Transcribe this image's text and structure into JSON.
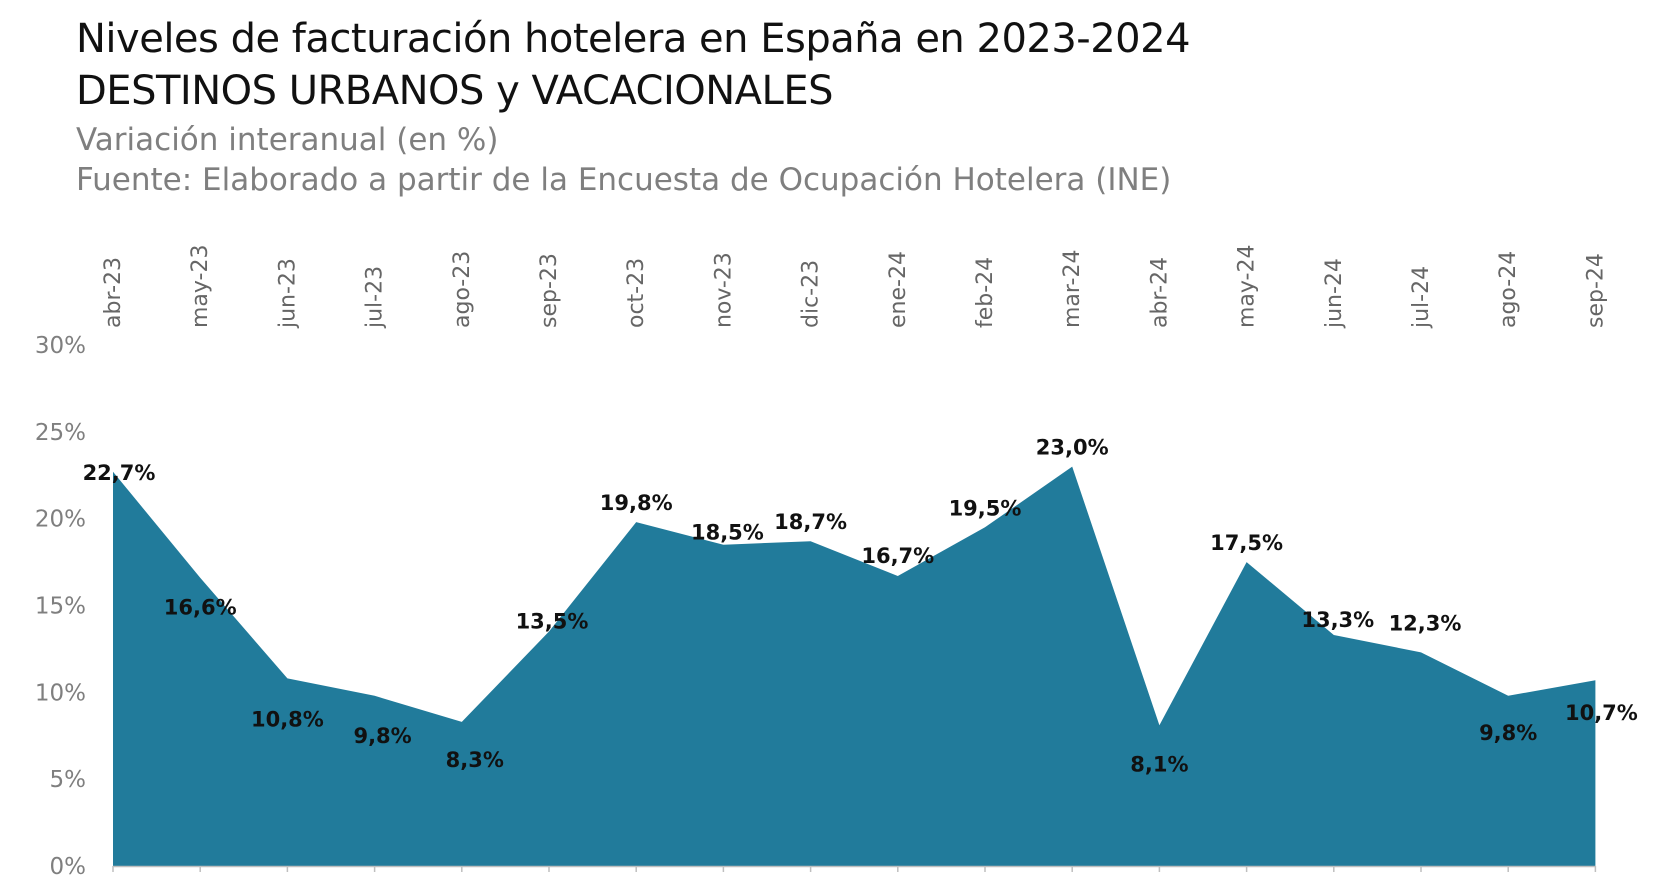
{
  "header": {
    "title_line1": "Niveles de facturación hotelera en España en 2023-2024",
    "title_line2": "DESTINOS URBANOS y VACACIONALES",
    "subtitle_line1": "Variación interanual (en %)",
    "subtitle_line2": "Fuente: Elaborado a partir de la Encuesta de Ocupación Hotelera (INE)"
  },
  "colors": {
    "area": "#217b9b",
    "baseline": "#bfbfbf"
  },
  "chart_data": {
    "type": "area",
    "title": "Niveles de facturación hotelera en España en 2023-2024",
    "subtitle": "DESTINOS URBANOS y VACACIONALES",
    "categories": [
      "abr-23",
      "may-23",
      "jun-23",
      "jul-23",
      "ago-23",
      "sep-23",
      "oct-23",
      "nov-23",
      "dic-23",
      "ene-24",
      "feb-24",
      "mar-24",
      "abr-24",
      "may-24",
      "jun-24",
      "jul-24",
      "ago-24",
      "sep-24"
    ],
    "values": [
      22.7,
      16.6,
      10.8,
      9.8,
      8.3,
      13.5,
      19.8,
      18.5,
      18.7,
      16.7,
      19.5,
      23.0,
      8.1,
      17.5,
      13.3,
      12.3,
      9.8,
      10.7
    ],
    "data_labels": [
      "22,7%",
      "16,6%",
      "10,8%",
      "9,8%",
      "8,3%",
      "13,5%",
      "19,8%",
      "18,5%",
      "18,7%",
      "16,7%",
      "19,5%",
      "23,0%",
      "8,1%",
      "17,5%",
      "13,3%",
      "12,3%",
      "9,8%",
      "10,7%"
    ],
    "y_ticks": [
      "0%",
      "5%",
      "10%",
      "15%",
      "20%",
      "25%",
      "30%"
    ],
    "ylim": [
      0,
      30
    ],
    "x_axis_position": "top",
    "x_tick_rotation": "vertical",
    "grid": false,
    "legend": "none"
  }
}
